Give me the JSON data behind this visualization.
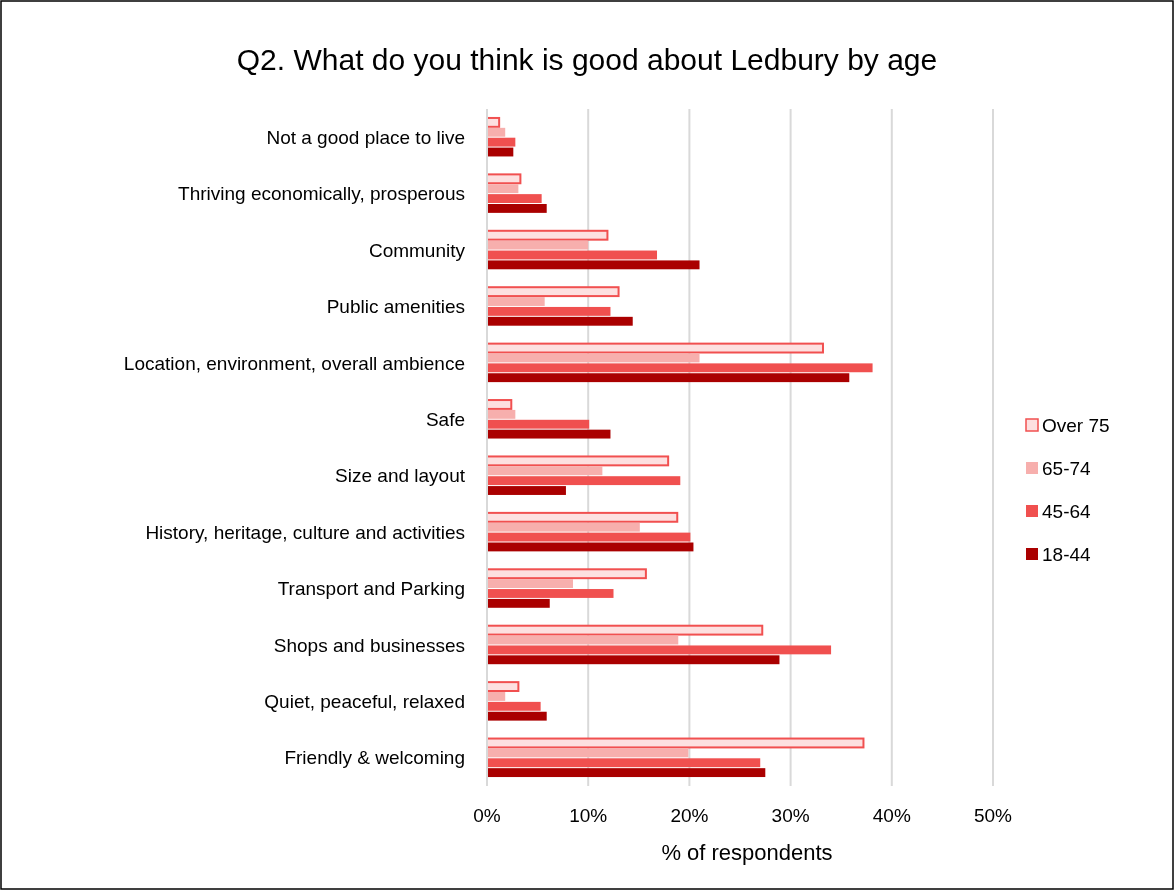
{
  "chart_data": {
    "type": "bar",
    "orientation": "horizontal",
    "title": "Q2. What do you think is good about Ledbury by age",
    "xlabel": "% of respondents",
    "categories": [
      "Not a good place to live",
      "Thriving economically, prosperous",
      "Community",
      "Public amenities",
      "Location, environment, overall ambience",
      "Safe",
      "Size and layout",
      "History, heritage, culture and activities",
      "Transport and Parking",
      "Shops and businesses",
      "Quiet, peaceful, relaxed",
      "Friendly & welcoming"
    ],
    "series": [
      {
        "name": "Over 75",
        "color": "#fde0e0",
        "values": [
          1.2,
          3.3,
          11.9,
          13.0,
          33.2,
          2.4,
          17.9,
          18.8,
          15.7,
          27.2,
          3.1,
          37.2
        ]
      },
      {
        "name": "65-74",
        "color": "#f7afad",
        "values": [
          1.8,
          3.1,
          10.0,
          5.7,
          21.0,
          2.8,
          11.4,
          15.1,
          8.5,
          18.9,
          1.8,
          19.9
        ]
      },
      {
        "name": "45-64",
        "color": "#f0504f",
        "values": [
          2.8,
          5.4,
          16.8,
          12.2,
          38.1,
          10.1,
          19.1,
          20.1,
          12.5,
          34.0,
          5.3,
          27.0
        ]
      },
      {
        "name": "18-44",
        "color": "#aa0000",
        "values": [
          2.6,
          5.9,
          21.0,
          14.4,
          35.8,
          12.2,
          7.8,
          20.4,
          6.2,
          28.9,
          5.9,
          27.5
        ]
      }
    ],
    "xlim": [
      0,
      50
    ],
    "xticks": [
      {
        "value": 0,
        "label": "0%"
      },
      {
        "value": 10,
        "label": "10%"
      },
      {
        "value": 20,
        "label": "20%"
      },
      {
        "value": 30,
        "label": "30%"
      },
      {
        "value": 40,
        "label": "40%"
      },
      {
        "value": 50,
        "label": "50%"
      }
    ],
    "grid": "x",
    "legend": "right"
  }
}
